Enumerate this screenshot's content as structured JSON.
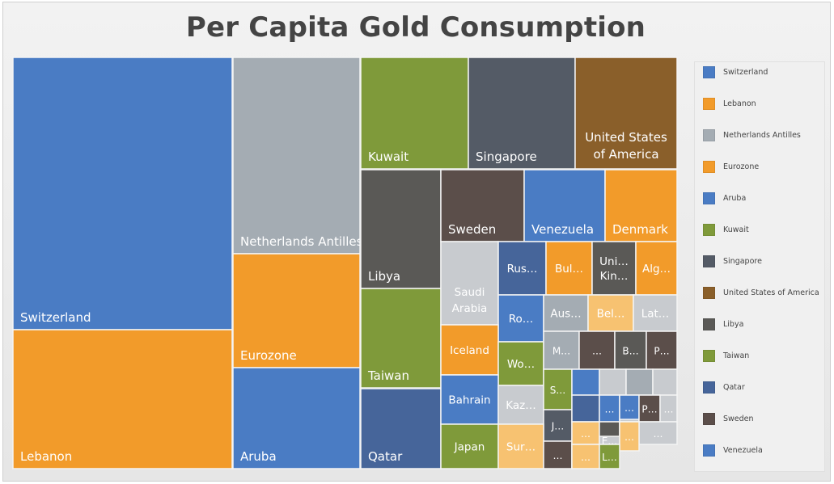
{
  "chart_data": {
    "type": "treemap",
    "title": "Per Capita Gold Consumption",
    "colors": {
      "blue": "#4a7cc4",
      "orange": "#f29b2a",
      "gray": "#a4acb3",
      "olive": "#7f9a3a",
      "slate": "#545b66",
      "brown": "#8a5f2a",
      "dark": "#5a5956",
      "dark_brown": "#5b4e4a",
      "navy": "#46659a",
      "light_orange": "#f7c271",
      "light_gray": "#c8cbcf",
      "border": "#f4f4f4",
      "label": "#ffffff"
    },
    "tiles": [
      {
        "label": "Switzerland",
        "value": 40.0,
        "color": "blue"
      },
      {
        "label": "Lebanon",
        "value": 24.0,
        "color": "orange"
      },
      {
        "label": "Netherlands Antilles",
        "value": 13.7,
        "color": "gray"
      },
      {
        "label": "Eurozone",
        "value": 9.0,
        "color": "orange"
      },
      {
        "label": "Aruba",
        "value": 7.6,
        "color": "blue"
      },
      {
        "label": "Kuwait",
        "value": 6.6,
        "color": "olive"
      },
      {
        "label": "Singapore",
        "value": 6.4,
        "color": "slate"
      },
      {
        "label": "United States of America",
        "value": 6.3,
        "color": "brown"
      },
      {
        "label": "Libya",
        "value": 4.8,
        "color": "dark"
      },
      {
        "label": "Taiwan",
        "value": 3.9,
        "color": "olive"
      },
      {
        "label": "Qatar",
        "value": 3.2,
        "color": "navy"
      },
      {
        "label": "Sweden",
        "value": 3.1,
        "color": "dark_brown"
      },
      {
        "label": "Venezuela",
        "value": 3.0,
        "color": "blue"
      },
      {
        "label": "Denmark",
        "value": 2.4,
        "color": "orange"
      },
      {
        "label": "Saudi Arabia",
        "value": 2.5,
        "color": "light_gray"
      },
      {
        "label": "Rus…",
        "value": 1.7,
        "color": "navy"
      },
      {
        "label": "Bul…",
        "value": 1.6,
        "color": "orange"
      },
      {
        "label": "Uni… Kin…",
        "value": 1.3,
        "color": "dark"
      },
      {
        "label": "Alg…",
        "value": 1.4,
        "color": "orange"
      },
      {
        "label": "Ro…",
        "value": 1.3,
        "color": "blue"
      },
      {
        "label": "Aus…",
        "value": 1.2,
        "color": "gray"
      },
      {
        "label": "Bel…",
        "value": 1.2,
        "color": "light_orange"
      },
      {
        "label": "Lat…",
        "value": 1.0,
        "color": "light_gray"
      },
      {
        "label": "Iceland",
        "value": 1.5,
        "color": "orange"
      },
      {
        "label": "Wo…",
        "value": 1.1,
        "color": "olive"
      },
      {
        "label": "M…",
        "value": 0.9,
        "color": "gray"
      },
      {
        "label": "…",
        "value": 0.9,
        "color": "dark_brown"
      },
      {
        "label": "B…",
        "value": 0.8,
        "color": "dark"
      },
      {
        "label": "P…",
        "value": 0.8,
        "color": "dark_brown"
      },
      {
        "label": "Bahrain",
        "value": 1.5,
        "color": "blue"
      },
      {
        "label": "Kaz…",
        "value": 1.0,
        "color": "light_gray"
      },
      {
        "label": "S…",
        "value": 0.9,
        "color": "olive"
      },
      {
        "label": "J…",
        "value": 0.6,
        "color": "slate"
      },
      {
        "label": "Japan",
        "value": 1.4,
        "color": "olive"
      },
      {
        "label": "Sur…",
        "value": 0.9,
        "color": "light_orange"
      },
      {
        "label": "…",
        "value": 0.5,
        "color": "dark_brown"
      }
    ],
    "small_tiles": [
      {
        "label": "",
        "value": 0.4,
        "color": "blue"
      },
      {
        "label": "",
        "value": 0.4,
        "color": "light_gray"
      },
      {
        "label": "",
        "value": 0.4,
        "color": "gray"
      },
      {
        "label": "",
        "value": 0.4,
        "color": "light_gray"
      },
      {
        "label": "",
        "value": 0.4,
        "color": "navy"
      },
      {
        "label": "…",
        "value": 0.3,
        "color": "blue"
      },
      {
        "label": "…",
        "value": 0.3,
        "color": "light_gray"
      },
      {
        "label": "…",
        "value": 0.3,
        "color": "dark_brown"
      },
      {
        "label": "…",
        "value": 0.3,
        "color": "blue"
      },
      {
        "label": "P…",
        "value": 0.3,
        "color": "dark_brown"
      },
      {
        "label": "…",
        "value": 0.2,
        "color": "light_gray"
      },
      {
        "label": "…",
        "value": 0.3,
        "color": "light_orange"
      },
      {
        "label": "…",
        "value": 0.3,
        "color": "dark"
      },
      {
        "label": "…",
        "value": 0.2,
        "color": "orange"
      },
      {
        "label": "…",
        "value": 0.3,
        "color": "light_gray"
      },
      {
        "label": "…",
        "value": 0.3,
        "color": "dark_brown"
      },
      {
        "label": "E…",
        "value": 0.2,
        "color": "light_gray"
      },
      {
        "label": "…",
        "value": 0.5,
        "color": "light_orange"
      },
      {
        "label": "…",
        "value": 0.3,
        "color": "light_orange"
      },
      {
        "label": "L…",
        "value": 0.3,
        "color": "olive"
      }
    ]
  },
  "legend": {
    "items": [
      {
        "label": "Switzerland",
        "color": "#4a7cc4"
      },
      {
        "label": "Lebanon",
        "color": "#f29b2a"
      },
      {
        "label": "Netherlands Antilles",
        "color": "#a4acb3"
      },
      {
        "label": "Eurozone",
        "color": "#f29b2a"
      },
      {
        "label": "Aruba",
        "color": "#4a7cc4"
      },
      {
        "label": "Kuwait",
        "color": "#7f9a3a"
      },
      {
        "label": "Singapore",
        "color": "#545b66"
      },
      {
        "label": "United States of America",
        "color": "#8a5f2a"
      },
      {
        "label": "Libya",
        "color": "#5a5956"
      },
      {
        "label": "Taiwan",
        "color": "#7f9a3a"
      },
      {
        "label": "Qatar",
        "color": "#46659a"
      },
      {
        "label": "Sweden",
        "color": "#5b4e4a"
      },
      {
        "label": "Venezuela",
        "color": "#4a7cc4"
      }
    ]
  }
}
